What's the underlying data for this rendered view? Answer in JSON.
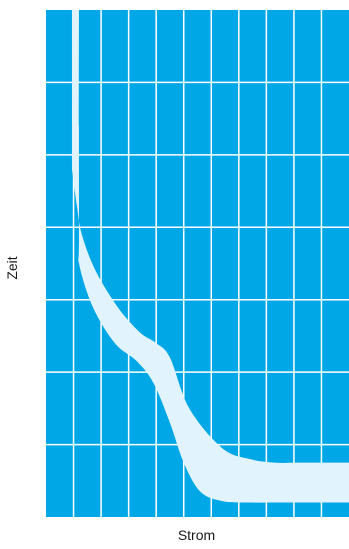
{
  "chart_data": {
    "type": "area",
    "title": "",
    "xlabel": "Strom",
    "ylabel": "Zeit",
    "grid": true,
    "xlim": [
      0,
      11
    ],
    "ylim": [
      0,
      7
    ],
    "x_gridlines": [
      1,
      2,
      3,
      4,
      5,
      6,
      7,
      8,
      9,
      10
    ],
    "y_gridlines": [
      1,
      2,
      3,
      4,
      5,
      6
    ],
    "band": {
      "name": "",
      "upper": {
        "x": [
          1.07,
          1.07,
          1.12,
          1.3,
          1.8,
          2.6,
          3.4,
          4.0,
          4.5,
          5.2,
          6.4,
          7.4,
          8.3,
          9.3,
          11.0
        ],
        "y": [
          7.0,
          4.8,
          4.3,
          3.9,
          3.4,
          2.9,
          2.55,
          2.4,
          2.2,
          1.5,
          0.95,
          0.8,
          0.75,
          0.75,
          0.75
        ]
      },
      "lower": {
        "x": [
          1.07,
          1.07,
          1.2,
          1.7,
          2.5,
          3.3,
          3.9,
          4.5,
          5.0,
          5.6,
          6.4,
          7.4,
          8.4,
          9.5,
          11.0
        ],
        "y": [
          7.0,
          3.9,
          3.5,
          2.9,
          2.4,
          2.15,
          1.85,
          1.3,
          0.75,
          0.35,
          0.22,
          0.2,
          0.2,
          0.2,
          0.2
        ]
      }
    },
    "colors": {
      "background": "#00a7e6",
      "grid": "#ffffff",
      "band": "#e1f4fd"
    }
  }
}
